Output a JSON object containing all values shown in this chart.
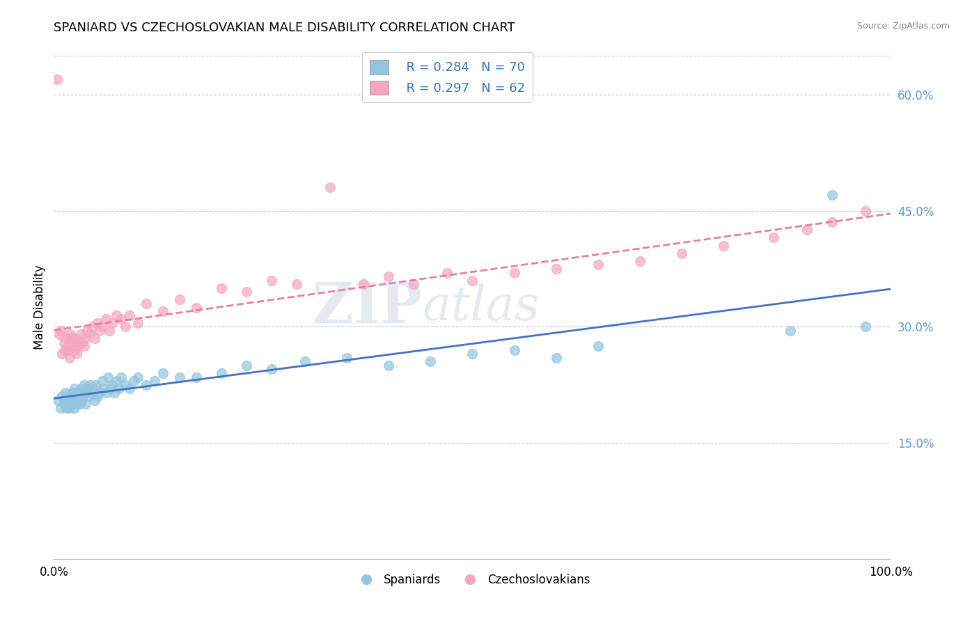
{
  "title": "SPANIARD VS CZECHOSLOVAKIAN MALE DISABILITY CORRELATION CHART",
  "source_text": "Source: ZipAtlas.com",
  "ylabel": "Male Disability",
  "xlim": [
    0.0,
    1.0
  ],
  "ylim": [
    0.0,
    0.65
  ],
  "ytick_positions": [
    0.15,
    0.3,
    0.45,
    0.6
  ],
  "ytick_labels": [
    "15.0%",
    "30.0%",
    "45.0%",
    "60.0%"
  ],
  "xtick_positions": [
    0.0,
    1.0
  ],
  "xtick_labels": [
    "0.0%",
    "100.0%"
  ],
  "watermark_part1": "ZIP",
  "watermark_part2": "atlas",
  "legend_label1": "Spaniards",
  "legend_label2": "Czechoslovakians",
  "blue_color": "#92C5DE",
  "pink_color": "#F4A6C0",
  "trendline_blue": "#4472C4",
  "trendline_pink": "#E87FA0",
  "background_color": "#ffffff",
  "grid_color": "#c8c8c8",
  "ytick_color": "#5B9BD5",
  "spaniards_x": [
    0.005,
    0.008,
    0.01,
    0.012,
    0.014,
    0.015,
    0.016,
    0.017,
    0.018,
    0.019,
    0.02,
    0.022,
    0.023,
    0.024,
    0.025,
    0.025,
    0.026,
    0.027,
    0.028,
    0.029,
    0.03,
    0.031,
    0.032,
    0.033,
    0.035,
    0.036,
    0.037,
    0.038,
    0.04,
    0.042,
    0.043,
    0.045,
    0.047,
    0.049,
    0.05,
    0.052,
    0.055,
    0.058,
    0.06,
    0.063,
    0.065,
    0.068,
    0.07,
    0.072,
    0.075,
    0.078,
    0.08,
    0.085,
    0.09,
    0.095,
    0.1,
    0.11,
    0.12,
    0.13,
    0.15,
    0.17,
    0.2,
    0.23,
    0.26,
    0.3,
    0.35,
    0.4,
    0.45,
    0.5,
    0.55,
    0.6,
    0.65,
    0.88,
    0.93,
    0.97
  ],
  "spaniards_y": [
    0.205,
    0.195,
    0.21,
    0.2,
    0.215,
    0.195,
    0.205,
    0.2,
    0.21,
    0.195,
    0.205,
    0.215,
    0.2,
    0.205,
    0.22,
    0.195,
    0.21,
    0.215,
    0.2,
    0.205,
    0.215,
    0.2,
    0.22,
    0.205,
    0.21,
    0.225,
    0.215,
    0.2,
    0.22,
    0.21,
    0.225,
    0.215,
    0.22,
    0.205,
    0.225,
    0.21,
    0.215,
    0.23,
    0.22,
    0.215,
    0.235,
    0.22,
    0.225,
    0.215,
    0.23,
    0.22,
    0.235,
    0.225,
    0.22,
    0.23,
    0.235,
    0.225,
    0.23,
    0.24,
    0.235,
    0.235,
    0.24,
    0.25,
    0.245,
    0.255,
    0.26,
    0.25,
    0.255,
    0.265,
    0.27,
    0.26,
    0.275,
    0.295,
    0.47,
    0.3
  ],
  "czechoslovakians_x": [
    0.004,
    0.006,
    0.008,
    0.01,
    0.012,
    0.013,
    0.015,
    0.016,
    0.017,
    0.018,
    0.019,
    0.02,
    0.022,
    0.023,
    0.025,
    0.026,
    0.027,
    0.028,
    0.03,
    0.032,
    0.034,
    0.036,
    0.038,
    0.04,
    0.043,
    0.046,
    0.049,
    0.052,
    0.055,
    0.058,
    0.062,
    0.066,
    0.07,
    0.075,
    0.08,
    0.085,
    0.09,
    0.1,
    0.11,
    0.13,
    0.15,
    0.17,
    0.2,
    0.23,
    0.26,
    0.29,
    0.33,
    0.37,
    0.4,
    0.43,
    0.47,
    0.5,
    0.55,
    0.6,
    0.65,
    0.7,
    0.75,
    0.8,
    0.86,
    0.9,
    0.93,
    0.97
  ],
  "czechoslovakians_y": [
    0.62,
    0.29,
    0.295,
    0.265,
    0.28,
    0.27,
    0.285,
    0.275,
    0.27,
    0.285,
    0.26,
    0.29,
    0.275,
    0.285,
    0.27,
    0.285,
    0.265,
    0.28,
    0.275,
    0.29,
    0.28,
    0.275,
    0.285,
    0.295,
    0.29,
    0.3,
    0.285,
    0.305,
    0.295,
    0.3,
    0.31,
    0.295,
    0.305,
    0.315,
    0.31,
    0.3,
    0.315,
    0.305,
    0.33,
    0.32,
    0.335,
    0.325,
    0.35,
    0.345,
    0.36,
    0.355,
    0.48,
    0.355,
    0.365,
    0.355,
    0.37,
    0.36,
    0.37,
    0.375,
    0.38,
    0.385,
    0.395,
    0.405,
    0.415,
    0.425,
    0.435,
    0.45
  ]
}
